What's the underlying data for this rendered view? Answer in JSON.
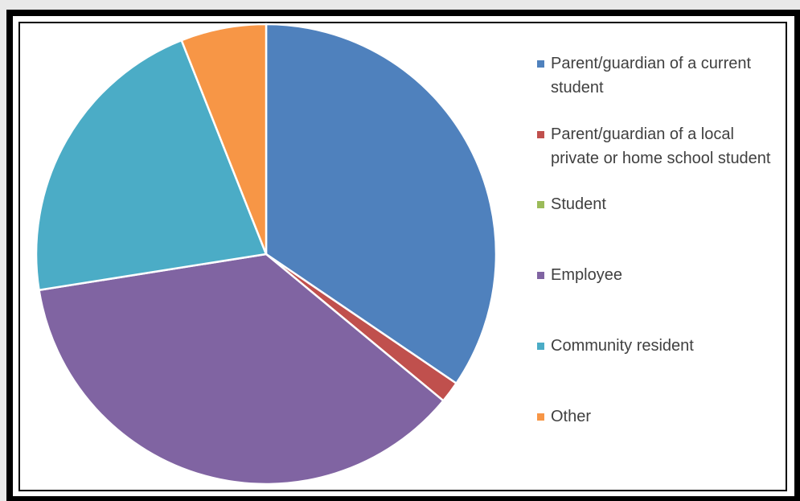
{
  "chart_data": {
    "type": "pie",
    "title": "",
    "legend_position": "right",
    "slices": [
      {
        "label": "Parent/guardian of a current student",
        "value": 34.5,
        "color": "#4f81bd"
      },
      {
        "label": "Parent/guardian of a local private or home school student",
        "value": 1.5,
        "color": "#c0504d"
      },
      {
        "label": "Student",
        "value": 0.0,
        "color": "#9bbb59"
      },
      {
        "label": "Employee",
        "value": 36.5,
        "color": "#8064a2"
      },
      {
        "label": "Community resident",
        "value": 21.5,
        "color": "#4bacc6"
      },
      {
        "label": "Other",
        "value": 6.0,
        "color": "#f79646"
      }
    ]
  }
}
